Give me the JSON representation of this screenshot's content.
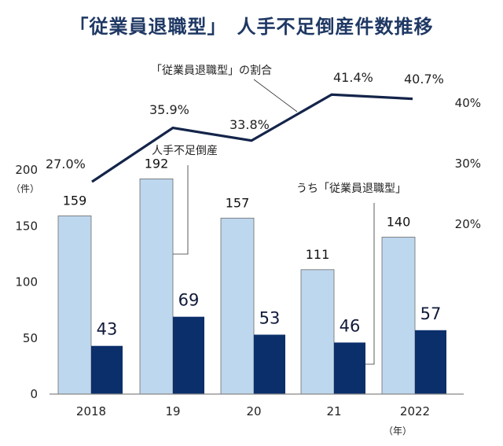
{
  "title": "「従業員退職型」　人手不足倒産件数推移",
  "chart_data": {
    "type": "bar",
    "title": "「従業員退職型」　人手不足倒産件数推移",
    "categories": [
      "2018",
      "19",
      "20",
      "21",
      "2022"
    ],
    "xlabel_unit": "（年）",
    "ylabel_unit": "（件）",
    "ylim": [
      0,
      200
    ],
    "yticks": [
      "0",
      "50",
      "100",
      "150",
      "200"
    ],
    "y2lim": [
      20,
      40
    ],
    "y2ticks": [
      "20%",
      "30%",
      "40%"
    ],
    "series": [
      {
        "name": "人手不足倒産",
        "type": "bar",
        "values": [
          159,
          192,
          157,
          111,
          140
        ],
        "labels": [
          "159",
          "192",
          "157",
          "111",
          "140"
        ],
        "color": "#bdd7ee"
      },
      {
        "name": "うち「従業員退職型」",
        "type": "bar",
        "values": [
          43,
          69,
          53,
          46,
          57
        ],
        "labels": [
          "43",
          "69",
          "53",
          "46",
          "57"
        ],
        "color": "#0b2f6b"
      },
      {
        "name": "「従業員退職型」の割合",
        "type": "line",
        "axis": "right",
        "values": [
          27.0,
          35.9,
          33.8,
          41.4,
          40.7
        ],
        "labels": [
          "27.0%",
          "35.9%",
          "33.8%",
          "41.4%",
          "40.7%"
        ],
        "color": "#14244a"
      }
    ],
    "grid": false,
    "legend": "callout annotations"
  }
}
